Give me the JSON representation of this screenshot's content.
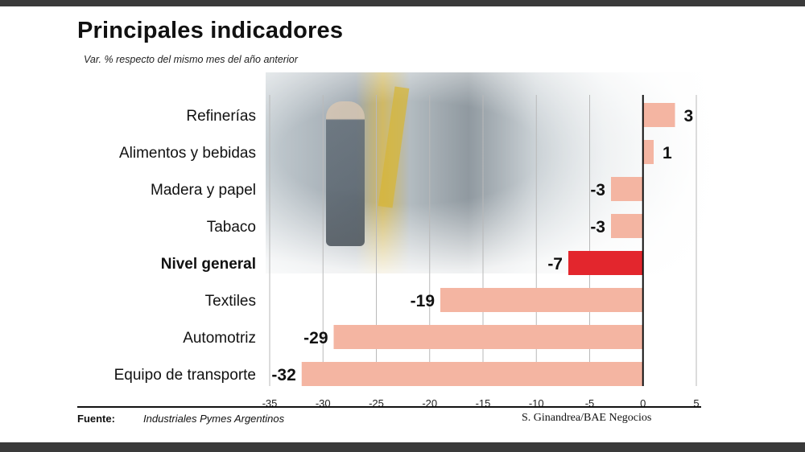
{
  "header": {
    "title": "Principales indicadores",
    "subtitle": "Var. % respecto del mismo mes del año anterior"
  },
  "chart_data": {
    "type": "bar",
    "orientation": "horizontal",
    "categories": [
      "Refinerías",
      "Alimentos y bebidas",
      "Madera y papel",
      "Tabaco",
      "Nivel general",
      "Textiles",
      "Automotriz",
      "Equipo de transporte"
    ],
    "values": [
      3,
      1,
      -3,
      -3,
      -7,
      -19,
      -29,
      -32
    ],
    "value_labels": [
      "3",
      "1",
      "-3",
      "-3",
      "-7",
      "-19",
      "-29",
      "-32"
    ],
    "highlight": "Nivel general",
    "xlim": [
      -35,
      5
    ],
    "xticks": [
      -35,
      -30,
      -25,
      -20,
      -15,
      -10,
      -5,
      0,
      5
    ],
    "grid": true,
    "colors": {
      "bar": "#f4b5a2",
      "highlight": "#e3262d",
      "grid": "#b9b9b9",
      "axis": "#111111"
    }
  },
  "footer": {
    "source_label": "Fuente:",
    "source_text": "Industriales Pymes Argentinos",
    "credit": "S. Ginandrea/BAE Negocios"
  }
}
